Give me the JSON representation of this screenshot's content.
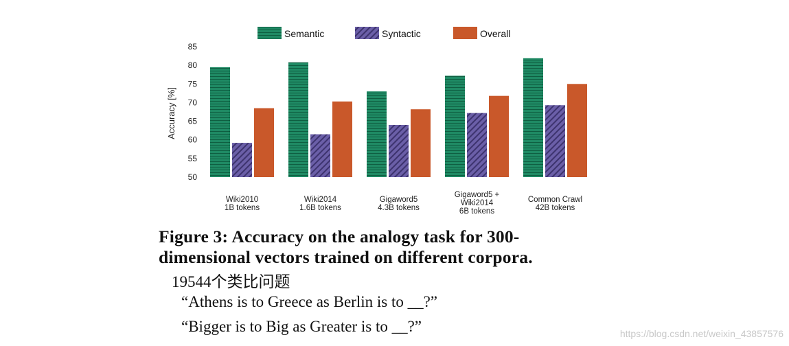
{
  "chart_data": {
    "type": "bar",
    "categories": [
      [
        "Wiki2010",
        "1B tokens"
      ],
      [
        "Wiki2014",
        "1.6B tokens"
      ],
      [
        "Gigaword5",
        "4.3B tokens"
      ],
      [
        "Gigaword5 +",
        "Wiki2014",
        "6B tokens"
      ],
      [
        "Common Crawl",
        "42B tokens"
      ]
    ],
    "series": [
      {
        "name": "Semantic",
        "values": [
          79.5,
          80.8,
          73.0,
          77.2,
          81.9
        ],
        "color": "#1f8a64",
        "pattern": "horizontal-lines"
      },
      {
        "name": "Syntactic",
        "values": [
          59.2,
          61.5,
          64.0,
          67.2,
          69.3
        ],
        "color": "#6b5fa8",
        "pattern": "diagonal-hatch"
      },
      {
        "name": "Overall",
        "values": [
          68.5,
          70.3,
          68.2,
          71.8,
          75.0
        ],
        "color": "#c9582a",
        "pattern": "solid"
      }
    ],
    "ylabel": "Accuracy [%]",
    "ylim": [
      50,
      85
    ],
    "yticks": [
      "50",
      "55",
      "60",
      "65",
      "70",
      "75",
      "80",
      "85"
    ],
    "legend_position": "top",
    "grid": false
  },
  "caption": {
    "line1": "Figure 3:  Accuracy on the analogy task for 300-",
    "line2": "dimensional vectors trained on different corpora."
  },
  "notes": {
    "count": "19544个类比问题",
    "q1": "“Athens is to Greece as Berlin is to __?”",
    "q2": "“Bigger is to Big as Greater is to __?”"
  },
  "watermark": "https://blog.csdn.net/weixin_43857576"
}
